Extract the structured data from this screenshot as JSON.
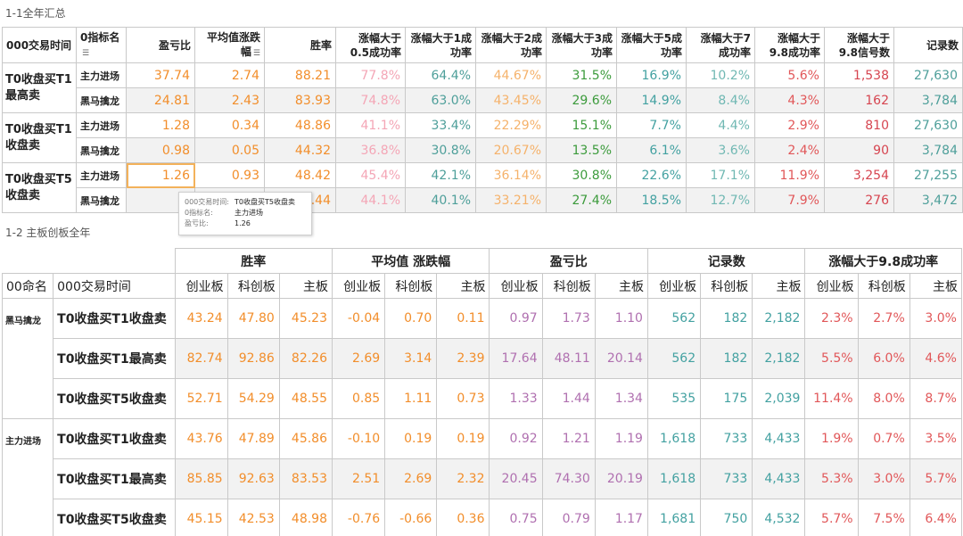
{
  "section1": {
    "title": "1-1全年汇总",
    "headers": {
      "time": "000交易时间",
      "indicator": "0指标名",
      "pnl": "盈亏比",
      "avg": "平均值涨跌幅",
      "win": "胜率",
      "r05": "涨幅大于0.5成功率",
      "r1": "涨幅大于1成功率",
      "r2": "涨幅大于2成功率",
      "r3": "涨幅大于3成功率",
      "r5": "涨幅大于5成功率",
      "r7": "涨幅大于7成功率",
      "r98": "涨幅大于9.8成功率",
      "r98sig": "涨幅大于9.8信号数",
      "count": "记录数"
    },
    "groups": [
      {
        "label": "T0收盘买T1最高卖",
        "rows": [
          {
            "sub": "主力进场",
            "v": [
              "37.74",
              "2.74",
              "88.21",
              "77.8%",
              "64.4%",
              "44.67%",
              "31.5%",
              "16.9%",
              "10.2%",
              "5.6%",
              "1,538",
              "27,630"
            ]
          },
          {
            "sub": "黑马擒龙",
            "v": [
              "24.81",
              "2.43",
              "83.93",
              "74.8%",
              "63.0%",
              "43.45%",
              "29.6%",
              "14.9%",
              "8.4%",
              "4.3%",
              "162",
              "3,784"
            ]
          }
        ]
      },
      {
        "label": "T0收盘买T1收盘卖",
        "rows": [
          {
            "sub": "主力进场",
            "v": [
              "1.28",
              "0.34",
              "48.86",
              "41.1%",
              "33.4%",
              "22.29%",
              "15.1%",
              "7.7%",
              "4.4%",
              "2.9%",
              "810",
              "27,630"
            ]
          },
          {
            "sub": "黑马擒龙",
            "v": [
              "0.98",
              "0.05",
              "44.32",
              "36.8%",
              "30.8%",
              "20.67%",
              "13.5%",
              "6.1%",
              "3.6%",
              "2.4%",
              "90",
              "3,784"
            ]
          }
        ]
      },
      {
        "label": "T0收盘买T5收盘卖",
        "rows": [
          {
            "sub": "主力进场",
            "v": [
              "1.26",
              "0.93",
              "48.42",
              "45.4%",
              "42.1%",
              "36.14%",
              "30.8%",
              "22.6%",
              "17.1%",
              "11.9%",
              "3,254",
              "27,255"
            ]
          },
          {
            "sub": "黑马擒龙",
            "v": [
              "0.",
              "",
              ".44",
              "44.1%",
              "40.1%",
              "33.21%",
              "27.4%",
              "18.5%",
              "12.7%",
              "7.9%",
              "276",
              "3,472"
            ]
          }
        ]
      }
    ],
    "tooltip": {
      "k1": "000交易时间:",
      "v1": "T0收盘买T5收盘卖",
      "k2": "0指标名:",
      "v2": "主力进场",
      "k3": "盈亏比:",
      "v3": "1.26"
    }
  },
  "section2": {
    "title": "1-2 主板创板全年",
    "group_headers": [
      "胜率",
      "平均值 涨跌幅",
      "盈亏比",
      "记录数",
      "涨幅大于9.8成功率"
    ],
    "col_name": "00命名",
    "col_time": "000交易时间",
    "sub_headers": [
      "创业板",
      "科创板",
      "主板"
    ],
    "groups": [
      {
        "label": "黑马擒龙",
        "rows": [
          {
            "time": "T0收盘买T1收盘卖",
            "v": [
              "43.24",
              "47.80",
              "45.23",
              "-0.04",
              "0.70",
              "0.11",
              "0.97",
              "1.73",
              "1.10",
              "562",
              "182",
              "2,182",
              "2.3%",
              "2.7%",
              "3.0%"
            ]
          },
          {
            "time": "T0收盘买T1最高卖",
            "v": [
              "82.74",
              "92.86",
              "82.26",
              "2.69",
              "3.14",
              "2.39",
              "17.64",
              "48.11",
              "20.14",
              "562",
              "182",
              "2,182",
              "5.5%",
              "6.0%",
              "4.6%"
            ]
          },
          {
            "time": "T0收盘买T5收盘卖",
            "v": [
              "52.71",
              "54.29",
              "48.55",
              "0.85",
              "1.11",
              "0.73",
              "1.33",
              "1.44",
              "1.34",
              "535",
              "175",
              "2,039",
              "11.4%",
              "8.0%",
              "8.7%"
            ]
          }
        ]
      },
      {
        "label": "主力进场",
        "rows": [
          {
            "time": "T0收盘买T1收盘卖",
            "v": [
              "43.76",
              "47.89",
              "45.86",
              "-0.10",
              "0.19",
              "0.19",
              "0.92",
              "1.21",
              "1.19",
              "1,618",
              "733",
              "4,433",
              "1.9%",
              "0.7%",
              "3.5%"
            ]
          },
          {
            "time": "T0收盘买T1最高卖",
            "v": [
              "85.85",
              "92.63",
              "83.53",
              "2.51",
              "2.69",
              "2.32",
              "20.45",
              "74.30",
              "20.19",
              "1,618",
              "733",
              "4,433",
              "5.3%",
              "3.0%",
              "5.7%"
            ]
          },
          {
            "time": "T0收盘买T5收盘卖",
            "v": [
              "45.15",
              "42.53",
              "48.98",
              "-0.76",
              "-0.66",
              "0.36",
              "0.75",
              "0.79",
              "1.17",
              "1,681",
              "750",
              "4,532",
              "5.7%",
              "7.5%",
              "6.4%"
            ]
          }
        ]
      }
    ]
  },
  "colors": {
    "orange": "#f28e2b",
    "pink": "#f4a6b6",
    "green": "#59a14f",
    "teal": "#43a1a1",
    "red": "#e15759",
    "purple": "#b070b0"
  }
}
